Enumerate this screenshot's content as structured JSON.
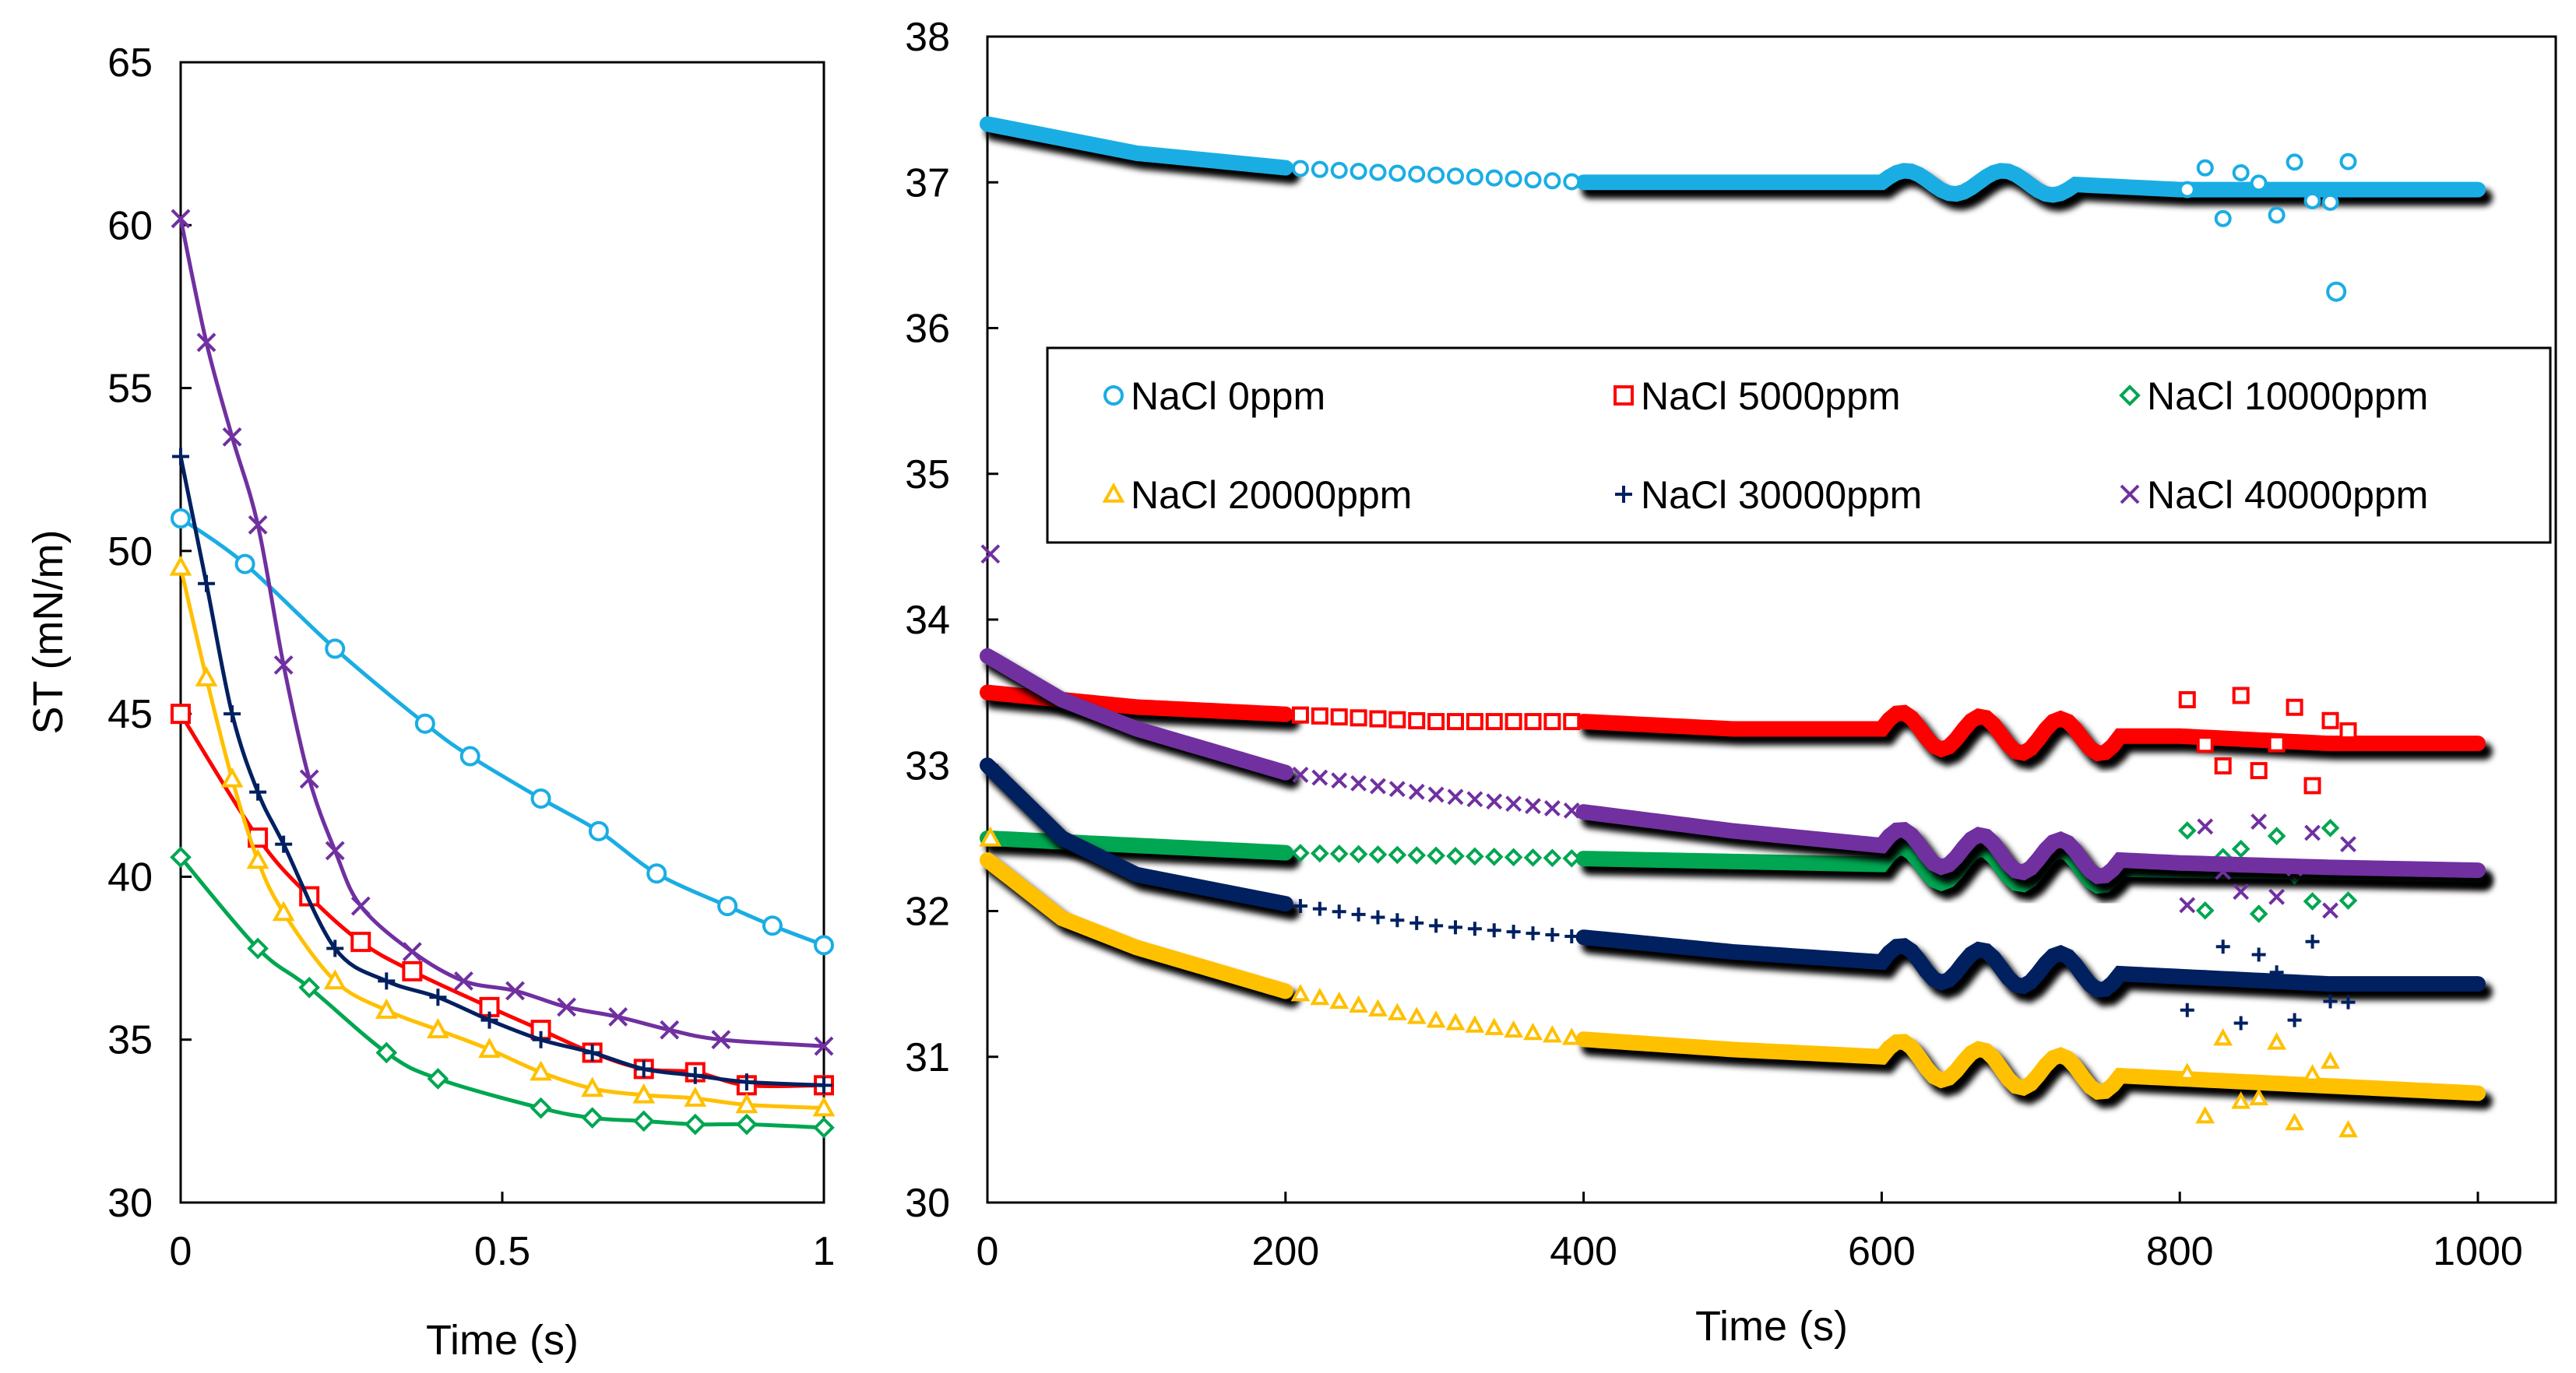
{
  "series_style": [
    {
      "name": "NaCl 0ppm",
      "color": "#1AADE4",
      "marker": "circle"
    },
    {
      "name": "NaCl 5000ppm",
      "color": "#FF0000",
      "marker": "square"
    },
    {
      "name": "NaCl 10000ppm",
      "color": "#00A651",
      "marker": "diamond"
    },
    {
      "name": "NaCl 20000ppm",
      "color": "#FFC000",
      "marker": "triangle"
    },
    {
      "name": "NaCl 30000ppm",
      "color": "#002060",
      "marker": "plus"
    },
    {
      "name": "NaCl 40000ppm",
      "color": "#7030A0",
      "marker": "cross"
    }
  ],
  "chart_data": [
    {
      "type": "line",
      "title": "",
      "xlabel": "Time (s)",
      "ylabel": "ST (mN/m)",
      "xlim": [
        0,
        1
      ],
      "ylim": [
        30,
        65
      ],
      "xticks": [
        "0",
        "0.5",
        "1"
      ],
      "yticks": [
        "30",
        "35",
        "40",
        "45",
        "50",
        "55",
        "60",
        "65"
      ],
      "series": [
        {
          "name": "NaCl 0ppm",
          "x": [
            0,
            0.1,
            0.24,
            0.38,
            0.45,
            0.56,
            0.65,
            0.74,
            0.85,
            0.92,
            1.0
          ],
          "y": [
            51.0,
            49.6,
            47.0,
            44.7,
            43.7,
            42.4,
            41.4,
            40.1,
            39.1,
            38.5,
            37.9
          ]
        },
        {
          "name": "NaCl 5000ppm",
          "x": [
            0,
            0.12,
            0.2,
            0.28,
            0.36,
            0.48,
            0.56,
            0.64,
            0.72,
            0.8,
            0.88,
            1.0
          ],
          "y": [
            45.0,
            41.2,
            39.4,
            38.0,
            37.1,
            36.0,
            35.3,
            34.6,
            34.1,
            34.0,
            33.6,
            33.6
          ]
        },
        {
          "name": "NaCl 10000ppm",
          "x": [
            0,
            0.12,
            0.2,
            0.32,
            0.4,
            0.56,
            0.64,
            0.72,
            0.8,
            0.88,
            1.0
          ],
          "y": [
            40.6,
            37.8,
            36.6,
            34.6,
            33.8,
            32.9,
            32.6,
            32.5,
            32.4,
            32.4,
            32.3
          ]
        },
        {
          "name": "NaCl 20000ppm",
          "x": [
            0,
            0.04,
            0.08,
            0.12,
            0.16,
            0.24,
            0.32,
            0.4,
            0.48,
            0.56,
            0.64,
            0.72,
            0.8,
            0.88,
            1.0
          ],
          "y": [
            49.5,
            46.1,
            43.0,
            40.5,
            38.9,
            36.8,
            35.9,
            35.3,
            34.7,
            34.0,
            33.5,
            33.3,
            33.2,
            33.0,
            32.9
          ]
        },
        {
          "name": "NaCl 30000ppm",
          "x": [
            0,
            0.04,
            0.08,
            0.12,
            0.16,
            0.24,
            0.32,
            0.4,
            0.48,
            0.56,
            0.64,
            0.72,
            0.8,
            0.88,
            1.0
          ],
          "y": [
            52.9,
            49.0,
            45.0,
            42.6,
            41.0,
            37.8,
            36.8,
            36.3,
            35.6,
            35.0,
            34.6,
            34.1,
            33.9,
            33.7,
            33.6
          ]
        },
        {
          "name": "NaCl 40000ppm",
          "x": [
            0,
            0.04,
            0.08,
            0.12,
            0.16,
            0.2,
            0.24,
            0.28,
            0.36,
            0.44,
            0.52,
            0.6,
            0.68,
            0.76,
            0.84,
            1.0
          ],
          "y": [
            60.2,
            56.4,
            53.5,
            50.8,
            46.5,
            43.0,
            40.8,
            39.1,
            37.7,
            36.8,
            36.5,
            36.0,
            35.7,
            35.3,
            35.0,
            34.8
          ]
        }
      ]
    },
    {
      "type": "scatter",
      "title": "",
      "xlabel": "Time (s)",
      "ylabel": "",
      "xlim": [
        0,
        1000
      ],
      "ylim": [
        30,
        38
      ],
      "xticks": [
        "0",
        "200",
        "400",
        "600",
        "800",
        "1000"
      ],
      "yticks": [
        "30",
        "31",
        "32",
        "33",
        "34",
        "35",
        "36",
        "37",
        "38"
      ],
      "legend_position": "upper-middle",
      "series": [
        {
          "name": "NaCl 0ppm",
          "x": [
            0,
            100,
            200,
            300,
            400,
            500,
            600,
            700,
            800,
            900,
            1000
          ],
          "y": [
            37.4,
            37.2,
            37.1,
            37.05,
            37.0,
            37.0,
            37.0,
            37.0,
            36.95,
            36.95,
            36.95
          ]
        },
        {
          "name": "NaCl 5000ppm",
          "x": [
            0,
            100,
            200,
            300,
            400,
            500,
            600,
            700,
            800,
            900,
            1000
          ],
          "y": [
            33.5,
            33.4,
            33.35,
            33.3,
            33.3,
            33.25,
            33.25,
            33.2,
            33.2,
            33.15,
            33.15
          ]
        },
        {
          "name": "NaCl 10000ppm",
          "x": [
            0,
            100,
            200,
            300,
            400,
            500,
            600,
            700,
            800,
            900,
            1000
          ],
          "y": [
            32.5,
            32.45,
            32.4,
            32.38,
            32.36,
            32.34,
            32.32,
            32.3,
            32.28,
            32.27,
            32.25
          ]
        },
        {
          "name": "NaCl 20000ppm",
          "x": [
            0,
            50,
            100,
            200,
            300,
            400,
            500,
            600,
            700,
            800,
            900,
            1000
          ],
          "y": [
            32.35,
            31.95,
            31.75,
            31.45,
            31.25,
            31.12,
            31.05,
            31.0,
            30.9,
            30.85,
            30.8,
            30.75
          ]
        },
        {
          "name": "NaCl 30000ppm",
          "x": [
            0,
            50,
            100,
            200,
            300,
            400,
            500,
            600,
            700,
            800,
            900,
            1000
          ],
          "y": [
            33.0,
            32.5,
            32.25,
            32.05,
            31.9,
            31.82,
            31.72,
            31.65,
            31.6,
            31.55,
            31.5,
            31.5
          ]
        },
        {
          "name": "NaCl 40000ppm",
          "x": [
            0,
            50,
            100,
            200,
            300,
            400,
            500,
            600,
            700,
            800,
            900,
            1000
          ],
          "y": [
            33.75,
            33.45,
            33.25,
            32.95,
            32.8,
            32.68,
            32.55,
            32.45,
            32.38,
            32.33,
            32.3,
            32.28
          ]
        }
      ]
    }
  ]
}
